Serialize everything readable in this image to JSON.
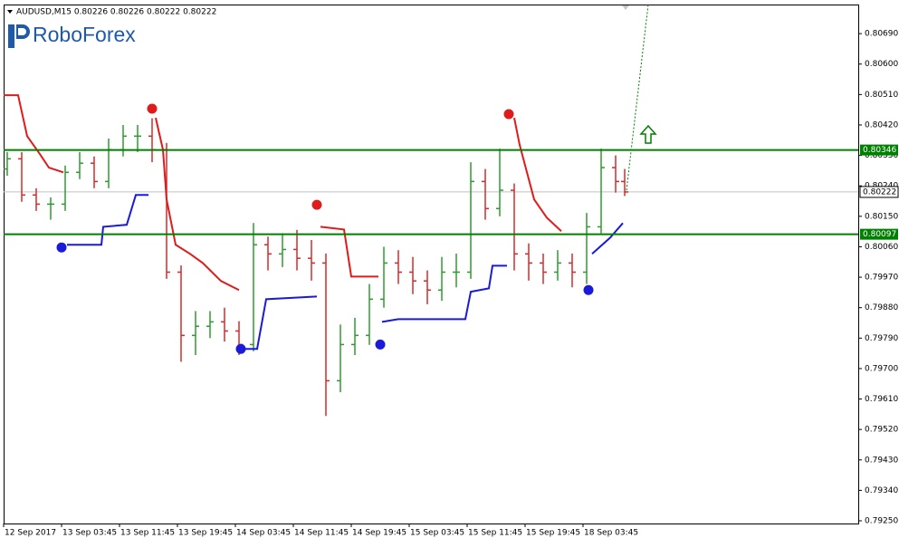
{
  "chart_data": {
    "type": "ohlc",
    "title": "AUDUSD,M15  0.80226 0.80226 0.80222 0.80222",
    "logo": "RoboForex",
    "up_color": "#2f9a2f",
    "down_color": "#d42a2a",
    "x": [
      2,
      10,
      18,
      26,
      34,
      42,
      50,
      58,
      66,
      74,
      82,
      90,
      98,
      106,
      114,
      122,
      130,
      138,
      146,
      154,
      162,
      170,
      178,
      186,
      194,
      202,
      210,
      218,
      226,
      234,
      242,
      250,
      258,
      266,
      274,
      282,
      290,
      298,
      306,
      314,
      322,
      330,
      338,
      343
    ],
    "open": [
      0.8029,
      0.8032,
      0.80213,
      0.80186,
      0.80186,
      0.8028,
      0.80307,
      0.80253,
      0.80347,
      0.80387,
      0.80387,
      0.80347,
      0.79985,
      0.79798,
      0.79825,
      0.79838,
      0.79811,
      0.79771,
      0.80066,
      0.80039,
      0.80052,
      0.80026,
      0.80012,
      0.79664,
      0.79771,
      0.79798,
      0.79905,
      0.80012,
      0.79985,
      0.79959,
      0.79932,
      0.79985,
      0.79985,
      0.80253,
      0.80173,
      0.80227,
      0.80039,
      0.80012,
      0.79985,
      0.80012,
      0.79985,
      0.80119,
      0.80294,
      0.80253
    ],
    "high": [
      0.8034,
      0.8034,
      0.80233,
      0.80206,
      0.803,
      0.8034,
      0.80327,
      0.8038,
      0.8042,
      0.8042,
      0.8044,
      0.80367,
      0.80005,
      0.7987,
      0.7987,
      0.7988,
      0.7984,
      0.8013,
      0.8009,
      0.801,
      0.8011,
      0.8008,
      0.8004,
      0.7983,
      0.7985,
      0.7995,
      0.8006,
      0.8005,
      0.8003,
      0.7999,
      0.8003,
      0.8004,
      0.8031,
      0.8029,
      0.8035,
      0.80247,
      0.8007,
      0.8004,
      0.8005,
      0.8004,
      0.8016,
      0.8035,
      0.8033,
      0.8029
    ],
    "low": [
      0.8027,
      0.80193,
      0.80166,
      0.8014,
      0.80166,
      0.8026,
      0.80233,
      0.80233,
      0.80327,
      0.8034,
      0.8031,
      0.79965,
      0.7972,
      0.7974,
      0.7979,
      0.7978,
      0.7974,
      0.79751,
      0.7999,
      0.8,
      0.7999,
      0.7996,
      0.7956,
      0.7963,
      0.7974,
      0.7977,
      0.7988,
      0.7995,
      0.7992,
      0.7989,
      0.799,
      0.7994,
      0.79965,
      0.8014,
      0.8015,
      0.7999,
      0.7996,
      0.7995,
      0.7996,
      0.7994,
      0.7995,
      0.801,
      0.8022,
      0.8021
    ],
    "close": [
      0.8032,
      0.80213,
      0.80186,
      0.80186,
      0.8028,
      0.80307,
      0.80253,
      0.80347,
      0.80387,
      0.80387,
      0.80347,
      0.79985,
      0.79798,
      0.79825,
      0.79838,
      0.79811,
      0.79771,
      0.80066,
      0.80039,
      0.80052,
      0.80026,
      0.80012,
      0.79664,
      0.79771,
      0.79798,
      0.79905,
      0.80012,
      0.79985,
      0.79959,
      0.79932,
      0.79985,
      0.79985,
      0.80253,
      0.80173,
      0.80227,
      0.80039,
      0.80012,
      0.79985,
      0.80012,
      0.79985,
      0.80119,
      0.80294,
      0.80253,
      0.80222
    ],
    "lines": [
      {
        "color": "#e01b1b",
        "x": [
          0,
          8,
          13,
          20,
          25,
          33,
          50,
          84,
          88,
          90,
          95,
          103,
          110,
          120,
          130,
          150,
          175,
          188,
          192,
          207,
          250,
          282,
          285,
          293,
          300,
          308
        ],
        "values": [
          0.80508,
          0.80508,
          0.80387,
          0.80334,
          0.80294,
          0.8028,
          null,
          0.80441,
          0.80347,
          0.802,
          0.80066,
          0.80039,
          0.80012,
          0.79959,
          0.79932,
          null,
          0.80119,
          0.80111,
          0.79972,
          0.79972,
          null,
          0.80441,
          0.80361,
          0.802,
          0.80146,
          0.80106
        ]
      },
      {
        "color": "#1a1adb",
        "x": [
          35,
          54,
          55,
          68,
          73,
          80,
          100,
          133,
          140,
          145,
          173,
          200,
          209,
          218,
          255,
          258,
          268,
          270,
          278,
          300,
          325,
          335,
          342
        ],
        "values": [
          0.80066,
          0.80066,
          0.80119,
          0.80125,
          0.80213,
          0.80213,
          null,
          0.79758,
          0.79758,
          0.79905,
          0.79913,
          null,
          0.79838,
          0.79846,
          0.79846,
          0.79927,
          0.79937,
          0.80004,
          0.80004,
          null,
          0.80039,
          0.80087,
          0.8013
        ]
      }
    ],
    "signals": [
      {
        "color": "#e01b1b",
        "x": [
          82,
          173,
          279
        ],
        "values": [
          0.80468,
          0.80184,
          0.80452
        ]
      },
      {
        "color": "#1a1adb",
        "x": [
          32,
          131,
          208,
          323
        ],
        "values": [
          0.80058,
          0.79758,
          0.79771,
          0.79932
        ]
      }
    ],
    "levels": [
      {
        "value": 0.80346,
        "color": "#008000"
      },
      {
        "value": 0.80097,
        "color": "#008000"
      }
    ],
    "current_price": 0.80222,
    "forecast": {
      "color": "#008000",
      "x": [
        344,
        356
      ],
      "values": [
        0.80227,
        0.80776
      ]
    },
    "xlim": [
      0,
      472
    ],
    "xticks": [
      {
        "value": 0,
        "label": "12 Sep 2017"
      },
      {
        "value": 32,
        "label": "13 Sep 03:45"
      },
      {
        "value": 64,
        "label": "13 Sep 11:45"
      },
      {
        "value": 96,
        "label": "13 Sep 19:45"
      },
      {
        "value": 128,
        "label": "14 Sep 03:45"
      },
      {
        "value": 160,
        "label": "14 Sep 11:45"
      },
      {
        "value": 192,
        "label": "14 Sep 19:45"
      },
      {
        "value": 224,
        "label": "15 Sep 03:45"
      },
      {
        "value": 256,
        "label": "15 Sep 11:45"
      },
      {
        "value": 288,
        "label": "15 Sep 19:45"
      },
      {
        "value": 320,
        "label": "18 Sep 03:45"
      }
    ],
    "ylim": [
      0.79242,
      0.80776
    ],
    "yticks": [
      {
        "value": 0.8069,
        "label": "0.80690"
      },
      {
        "value": 0.806,
        "label": "0.80600"
      },
      {
        "value": 0.8051,
        "label": "0.80510"
      },
      {
        "value": 0.8042,
        "label": "0.80420"
      },
      {
        "value": 0.8033,
        "label": "0.80330"
      },
      {
        "value": 0.8024,
        "label": "0.80240"
      },
      {
        "value": 0.8015,
        "label": "0.80150"
      },
      {
        "value": 0.8006,
        "label": "0.80060"
      },
      {
        "value": 0.7997,
        "label": "0.79970"
      },
      {
        "value": 0.7988,
        "label": "0.79880"
      },
      {
        "value": 0.7979,
        "label": "0.79790"
      },
      {
        "value": 0.797,
        "label": "0.79700"
      },
      {
        "value": 0.7961,
        "label": "0.79610"
      },
      {
        "value": 0.7952,
        "label": "0.79520"
      },
      {
        "value": 0.7943,
        "label": "0.79430"
      },
      {
        "value": 0.7934,
        "label": "0.79340"
      },
      {
        "value": 0.7925,
        "label": "0.79250"
      }
    ]
  }
}
